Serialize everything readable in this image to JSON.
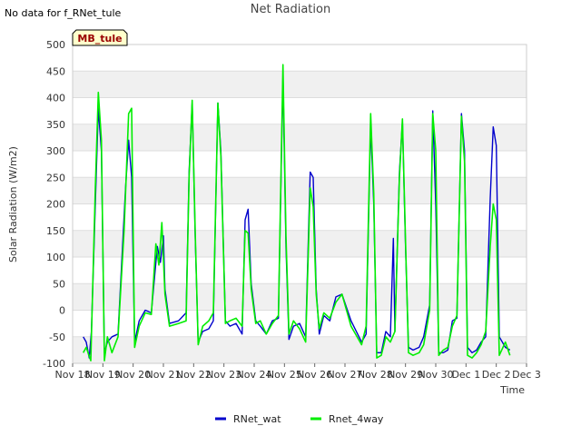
{
  "header": {
    "no_data_text": "No data for f_RNet_tule",
    "site_badge": "MB_tule"
  },
  "chart_data": {
    "type": "line",
    "title": "Net Radiation",
    "xlabel": "Time",
    "ylabel": "Solar Radiation (W/m2)",
    "ylim": [
      -100,
      500
    ],
    "yticks": [
      -100,
      -50,
      0,
      50,
      100,
      150,
      200,
      250,
      300,
      350,
      400,
      450,
      500
    ],
    "xlim": [
      0,
      15
    ],
    "x_unit": "days since Nov 18",
    "xticks": [
      {
        "x": 0,
        "label": "Nov 18"
      },
      {
        "x": 1,
        "label": "Nov 19"
      },
      {
        "x": 2,
        "label": "Nov 20"
      },
      {
        "x": 3,
        "label": "Nov 21"
      },
      {
        "x": 4,
        "label": "Nov 22"
      },
      {
        "x": 5,
        "label": "Nov 23"
      },
      {
        "x": 6,
        "label": "Nov 24"
      },
      {
        "x": 7,
        "label": "Nov 25"
      },
      {
        "x": 8,
        "label": "Nov 26"
      },
      {
        "x": 9,
        "label": "Nov 27"
      },
      {
        "x": 10,
        "label": "Nov 28"
      },
      {
        "x": 11,
        "label": "Nov 29"
      },
      {
        "x": 12,
        "label": "Nov 30"
      },
      {
        "x": 13,
        "label": "Dec 1"
      },
      {
        "x": 14,
        "label": "Dec 2"
      },
      {
        "x": 15,
        "label": "Dec 3"
      }
    ],
    "grid": "horizontal bands",
    "legend_position": "bottom-center",
    "series": [
      {
        "name": "RNet_wat",
        "color": "#0000cc",
        "points": [
          [
            0.35,
            -50
          ],
          [
            0.45,
            -60
          ],
          [
            0.55,
            -90
          ],
          [
            0.62,
            -40
          ],
          [
            0.75,
            200
          ],
          [
            0.85,
            380
          ],
          [
            0.95,
            300
          ],
          [
            1.05,
            -80
          ],
          [
            1.15,
            -60
          ],
          [
            1.3,
            -50
          ],
          [
            1.5,
            -45
          ],
          [
            1.75,
            230
          ],
          [
            1.85,
            320
          ],
          [
            1.95,
            250
          ],
          [
            2.05,
            -60
          ],
          [
            2.2,
            -20
          ],
          [
            2.4,
            0
          ],
          [
            2.6,
            -5
          ],
          [
            2.8,
            120
          ],
          [
            2.9,
            90
          ],
          [
            3.0,
            140
          ],
          [
            3.05,
            40
          ],
          [
            3.2,
            -25
          ],
          [
            3.5,
            -20
          ],
          [
            3.75,
            -5
          ],
          [
            3.85,
            260
          ],
          [
            3.95,
            390
          ],
          [
            4.05,
            140
          ],
          [
            4.15,
            -60
          ],
          [
            4.3,
            -40
          ],
          [
            4.5,
            -35
          ],
          [
            4.65,
            -20
          ],
          [
            4.8,
            390
          ],
          [
            4.9,
            300
          ],
          [
            5.05,
            -20
          ],
          [
            5.2,
            -30
          ],
          [
            5.4,
            -25
          ],
          [
            5.6,
            -45
          ],
          [
            5.7,
            170
          ],
          [
            5.8,
            190
          ],
          [
            5.9,
            50
          ],
          [
            6.05,
            -20
          ],
          [
            6.2,
            -30
          ],
          [
            6.4,
            -45
          ],
          [
            6.6,
            -20
          ],
          [
            6.8,
            -15
          ],
          [
            6.95,
            440
          ],
          [
            7.05,
            120
          ],
          [
            7.15,
            -55
          ],
          [
            7.3,
            -30
          ],
          [
            7.5,
            -25
          ],
          [
            7.7,
            -50
          ],
          [
            7.85,
            260
          ],
          [
            7.95,
            250
          ],
          [
            8.05,
            40
          ],
          [
            8.15,
            -45
          ],
          [
            8.3,
            -10
          ],
          [
            8.5,
            -20
          ],
          [
            8.7,
            25
          ],
          [
            8.9,
            30
          ],
          [
            9.2,
            -20
          ],
          [
            9.55,
            -60
          ],
          [
            9.7,
            -45
          ],
          [
            9.85,
            350
          ],
          [
            9.95,
            200
          ],
          [
            10.05,
            -80
          ],
          [
            10.2,
            -80
          ],
          [
            10.35,
            -40
          ],
          [
            10.5,
            -50
          ],
          [
            10.6,
            135
          ],
          [
            10.65,
            -40
          ],
          [
            10.8,
            260
          ],
          [
            10.9,
            355
          ],
          [
            11.0,
            120
          ],
          [
            11.1,
            -70
          ],
          [
            11.25,
            -75
          ],
          [
            11.45,
            -70
          ],
          [
            11.6,
            -50
          ],
          [
            11.8,
            10
          ],
          [
            11.9,
            375
          ],
          [
            12.0,
            200
          ],
          [
            12.1,
            -80
          ],
          [
            12.25,
            -80
          ],
          [
            12.4,
            -75
          ],
          [
            12.55,
            -20
          ],
          [
            12.7,
            -15
          ],
          [
            12.85,
            370
          ],
          [
            12.95,
            300
          ],
          [
            13.05,
            -70
          ],
          [
            13.2,
            -80
          ],
          [
            13.35,
            -75
          ],
          [
            13.5,
            -60
          ],
          [
            13.65,
            -50
          ],
          [
            13.8,
            210
          ],
          [
            13.9,
            345
          ],
          [
            14.0,
            310
          ],
          [
            14.1,
            -50
          ],
          [
            14.3,
            -70
          ],
          [
            14.45,
            -75
          ]
        ]
      },
      {
        "name": "Rnet_4way",
        "color": "#00ee00",
        "points": [
          [
            0.35,
            -80
          ],
          [
            0.45,
            -70
          ],
          [
            0.6,
            -95
          ],
          [
            0.75,
            230
          ],
          [
            0.85,
            410
          ],
          [
            0.95,
            320
          ],
          [
            1.05,
            -95
          ],
          [
            1.15,
            -50
          ],
          [
            1.3,
            -80
          ],
          [
            1.5,
            -50
          ],
          [
            1.7,
            150
          ],
          [
            1.85,
            370
          ],
          [
            1.95,
            380
          ],
          [
            2.05,
            -70
          ],
          [
            2.2,
            -30
          ],
          [
            2.4,
            -5
          ],
          [
            2.6,
            -8
          ],
          [
            2.75,
            125
          ],
          [
            2.85,
            85
          ],
          [
            2.95,
            165
          ],
          [
            3.05,
            30
          ],
          [
            3.2,
            -30
          ],
          [
            3.5,
            -25
          ],
          [
            3.75,
            -20
          ],
          [
            3.85,
            250
          ],
          [
            3.95,
            395
          ],
          [
            4.05,
            150
          ],
          [
            4.15,
            -65
          ],
          [
            4.3,
            -30
          ],
          [
            4.5,
            -20
          ],
          [
            4.65,
            -5
          ],
          [
            4.8,
            390
          ],
          [
            4.9,
            290
          ],
          [
            5.05,
            -25
          ],
          [
            5.2,
            -20
          ],
          [
            5.4,
            -15
          ],
          [
            5.6,
            -30
          ],
          [
            5.7,
            150
          ],
          [
            5.8,
            145
          ],
          [
            5.9,
            40
          ],
          [
            6.05,
            -25
          ],
          [
            6.2,
            -20
          ],
          [
            6.4,
            -45
          ],
          [
            6.6,
            -25
          ],
          [
            6.8,
            -10
          ],
          [
            6.95,
            462
          ],
          [
            7.05,
            140
          ],
          [
            7.15,
            -45
          ],
          [
            7.3,
            -20
          ],
          [
            7.5,
            -35
          ],
          [
            7.7,
            -60
          ],
          [
            7.85,
            230
          ],
          [
            7.95,
            195
          ],
          [
            8.05,
            30
          ],
          [
            8.15,
            -35
          ],
          [
            8.3,
            -5
          ],
          [
            8.5,
            -15
          ],
          [
            8.7,
            15
          ],
          [
            8.9,
            30
          ],
          [
            9.2,
            -30
          ],
          [
            9.55,
            -65
          ],
          [
            9.7,
            -30
          ],
          [
            9.85,
            370
          ],
          [
            9.95,
            220
          ],
          [
            10.05,
            -90
          ],
          [
            10.2,
            -85
          ],
          [
            10.35,
            -50
          ],
          [
            10.5,
            -60
          ],
          [
            10.65,
            -40
          ],
          [
            10.8,
            250
          ],
          [
            10.9,
            360
          ],
          [
            11.0,
            130
          ],
          [
            11.1,
            -80
          ],
          [
            11.25,
            -85
          ],
          [
            11.45,
            -80
          ],
          [
            11.6,
            -65
          ],
          [
            11.8,
            0
          ],
          [
            11.9,
            370
          ],
          [
            12.0,
            300
          ],
          [
            12.1,
            -85
          ],
          [
            12.25,
            -75
          ],
          [
            12.4,
            -70
          ],
          [
            12.55,
            -30
          ],
          [
            12.7,
            -10
          ],
          [
            12.85,
            365
          ],
          [
            12.95,
            280
          ],
          [
            13.05,
            -85
          ],
          [
            13.2,
            -90
          ],
          [
            13.35,
            -80
          ],
          [
            13.5,
            -65
          ],
          [
            13.65,
            -40
          ],
          [
            13.8,
            120
          ],
          [
            13.9,
            200
          ],
          [
            14.0,
            170
          ],
          [
            14.1,
            -85
          ],
          [
            14.3,
            -60
          ],
          [
            14.45,
            -85
          ]
        ]
      }
    ]
  }
}
